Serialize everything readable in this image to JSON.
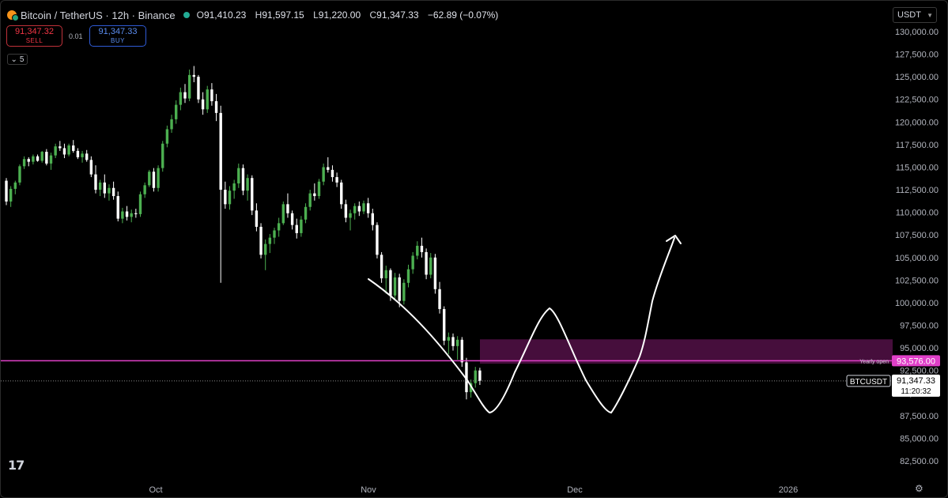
{
  "header": {
    "title": "Bitcoin / TetherUS · 12h · Binance",
    "ohlc": [
      {
        "key": "O",
        "value": "91,410.23"
      },
      {
        "key": "H",
        "value": "91,597.15"
      },
      {
        "key": "L",
        "value": "91,220.00"
      },
      {
        "key": "C",
        "value": "91,347.33"
      }
    ],
    "change": "−62.89 (−0.07%)"
  },
  "trade": {
    "sell_price": "91,347.32",
    "sell_label": "SELL",
    "spread": "0.01",
    "buy_price": "91,347.33",
    "buy_label": "BUY"
  },
  "indicators_toggle": "5",
  "currency": "USDT",
  "price_axis": {
    "min": 81000,
    "max": 131000,
    "labels": [
      "130,000.00",
      "127,500.00",
      "125,000.00",
      "122,500.00",
      "120,000.00",
      "117,500.00",
      "115,000.00",
      "112,500.00",
      "110,000.00",
      "107,500.00",
      "105,000.00",
      "102,500.00",
      "100,000.00",
      "97,500.00",
      "95,000.00",
      "92,500.00",
      "90,000.00",
      "87,500.00",
      "85,000.00",
      "82,500.00"
    ],
    "values": [
      130000,
      127500,
      125000,
      122500,
      120000,
      117500,
      115000,
      112500,
      110000,
      107500,
      105000,
      102500,
      100000,
      97500,
      95000,
      92500,
      90000,
      87500,
      85000,
      82500
    ]
  },
  "time_axis": [
    {
      "label": "Oct"
    },
    {
      "label": "Nov"
    },
    {
      "label": "Dec"
    },
    {
      "label": "2026"
    }
  ],
  "markers": {
    "yearly_open_label": "Yearly open",
    "yearly_open_value": "93,576.00",
    "yearly_open_price": 93576,
    "current_symbol": "BTCUSDT",
    "current_price": "91,347.33",
    "current_price_value": 91347.33,
    "countdown": "11:20:32"
  },
  "zone": {
    "from": 93250,
    "to": 95950
  },
  "colors": {
    "up": "#4caf50",
    "down": "#ffffff",
    "yearly_open": "#e040c8",
    "zone": "#4a0f3f",
    "drawing": "#ffffff"
  },
  "chart_data": {
    "type": "candlestick",
    "candles": [
      [
        113500,
        113800,
        110800,
        111200
      ],
      [
        111200,
        112900,
        110600,
        112600
      ],
      [
        112600,
        113500,
        112000,
        113300
      ],
      [
        113300,
        115300,
        113000,
        115100
      ],
      [
        115100,
        116200,
        114800,
        115900
      ],
      [
        115900,
        116100,
        115100,
        115600
      ],
      [
        115600,
        116400,
        115300,
        116200
      ],
      [
        116200,
        116400,
        115600,
        115700
      ],
      [
        115700,
        116800,
        115500,
        116700
      ],
      [
        116700,
        117000,
        115200,
        115400
      ],
      [
        115400,
        116600,
        114700,
        116300
      ],
      [
        116300,
        117600,
        116000,
        117300
      ],
      [
        117300,
        117900,
        116800,
        117100
      ],
      [
        117100,
        117600,
        116000,
        116400
      ],
      [
        116400,
        117600,
        116200,
        117400
      ],
      [
        117400,
        118000,
        116600,
        116800
      ],
      [
        116800,
        117100,
        115900,
        116100
      ],
      [
        116100,
        116800,
        115500,
        116500
      ],
      [
        116500,
        116900,
        115600,
        115800
      ],
      [
        115800,
        116200,
        113900,
        114200
      ],
      [
        114200,
        115200,
        112100,
        112500
      ],
      [
        112500,
        113600,
        111800,
        113300
      ],
      [
        113300,
        114200,
        111600,
        112100
      ],
      [
        112100,
        113100,
        111300,
        112700
      ],
      [
        112700,
        113400,
        111400,
        111800
      ],
      [
        111800,
        112300,
        109000,
        109300
      ],
      [
        109300,
        110500,
        108800,
        110100
      ],
      [
        110100,
        110700,
        109100,
        109500
      ],
      [
        109500,
        110300,
        108900,
        109900
      ],
      [
        109900,
        110400,
        109400,
        109800
      ],
      [
        109800,
        112300,
        109500,
        112000
      ],
      [
        112000,
        113300,
        111600,
        113000
      ],
      [
        113000,
        114700,
        112800,
        114500
      ],
      [
        114500,
        114900,
        112300,
        112700
      ],
      [
        112700,
        115200,
        112300,
        114900
      ],
      [
        114900,
        117900,
        114500,
        117600
      ],
      [
        117600,
        119600,
        117200,
        119200
      ],
      [
        119200,
        120800,
        118800,
        120300
      ],
      [
        120300,
        122400,
        119800,
        121900
      ],
      [
        121900,
        123800,
        121300,
        123300
      ],
      [
        123300,
        124200,
        122100,
        122600
      ],
      [
        122600,
        125800,
        122300,
        125200
      ],
      [
        125200,
        126200,
        124400,
        125000
      ],
      [
        125000,
        125200,
        122100,
        122500
      ],
      [
        122500,
        123300,
        120800,
        121400
      ],
      [
        121400,
        124000,
        121000,
        123600
      ],
      [
        123600,
        124300,
        121800,
        122300
      ],
      [
        122300,
        123100,
        120100,
        121000
      ],
      [
        121000,
        121800,
        102200,
        112500
      ],
      [
        112500,
        113400,
        110400,
        110900
      ],
      [
        110900,
        112900,
        110300,
        112400
      ],
      [
        112400,
        113600,
        111500,
        113200
      ],
      [
        113200,
        115400,
        112700,
        114900
      ],
      [
        114900,
        115300,
        111900,
        112400
      ],
      [
        112400,
        114200,
        111300,
        113800
      ],
      [
        113800,
        114100,
        109700,
        110200
      ],
      [
        110200,
        111000,
        107900,
        108400
      ],
      [
        108400,
        108800,
        104900,
        105300
      ],
      [
        105300,
        107000,
        103600,
        106500
      ],
      [
        106500,
        107600,
        105500,
        107200
      ],
      [
        107200,
        108300,
        106500,
        108000
      ],
      [
        108000,
        109400,
        107300,
        108800
      ],
      [
        108800,
        111200,
        108600,
        110900
      ],
      [
        110900,
        112100,
        109400,
        109900
      ],
      [
        109900,
        110200,
        108100,
        108600
      ],
      [
        108600,
        109300,
        107100,
        107700
      ],
      [
        107700,
        109600,
        107300,
        109200
      ],
      [
        109200,
        111000,
        108800,
        110600
      ],
      [
        110600,
        112500,
        110200,
        112100
      ],
      [
        112100,
        113200,
        111300,
        111800
      ],
      [
        111800,
        113700,
        111500,
        113400
      ],
      [
        113400,
        115400,
        113000,
        115000
      ],
      [
        115000,
        116100,
        114400,
        114700
      ],
      [
        114700,
        115200,
        113400,
        113900
      ],
      [
        113900,
        114400,
        112800,
        113300
      ],
      [
        113300,
        113600,
        110400,
        110900
      ],
      [
        110900,
        111400,
        108900,
        109400
      ],
      [
        109400,
        110300,
        108000,
        109900
      ],
      [
        109900,
        111000,
        109200,
        110700
      ],
      [
        110700,
        111200,
        109600,
        110100
      ],
      [
        110100,
        111300,
        109800,
        111000
      ],
      [
        111000,
        111600,
        109400,
        109900
      ],
      [
        109900,
        110400,
        108000,
        108600
      ],
      [
        108600,
        108900,
        104900,
        105300
      ],
      [
        105300,
        105600,
        102200,
        102700
      ],
      [
        102700,
        104100,
        101000,
        103600
      ],
      [
        103600,
        103800,
        100200,
        100800
      ],
      [
        100800,
        103300,
        100300,
        102800
      ],
      [
        102800,
        103200,
        99500,
        100200
      ],
      [
        100200,
        102600,
        99800,
        102200
      ],
      [
        102200,
        104200,
        101700,
        103700
      ],
      [
        103700,
        105600,
        103200,
        105200
      ],
      [
        105200,
        106800,
        104800,
        106300
      ],
      [
        106300,
        107200,
        105000,
        105600
      ],
      [
        105600,
        106000,
        102600,
        103100
      ],
      [
        103100,
        105500,
        102700,
        105000
      ],
      [
        105000,
        105400,
        101000,
        101500
      ],
      [
        101500,
        102300,
        98800,
        99300
      ],
      [
        99300,
        99600,
        95300,
        95800
      ],
      [
        95800,
        96700,
        94300,
        96200
      ],
      [
        96200,
        96600,
        94700,
        95200
      ],
      [
        95200,
        96300,
        93700,
        95900
      ],
      [
        95900,
        96200,
        92900,
        93400
      ],
      [
        93400,
        93900,
        89300,
        90100
      ],
      [
        90100,
        91500,
        89500,
        91100
      ],
      [
        91100,
        92900,
        90600,
        92500
      ],
      [
        92500,
        92800,
        90900,
        91347.33
      ]
    ]
  }
}
